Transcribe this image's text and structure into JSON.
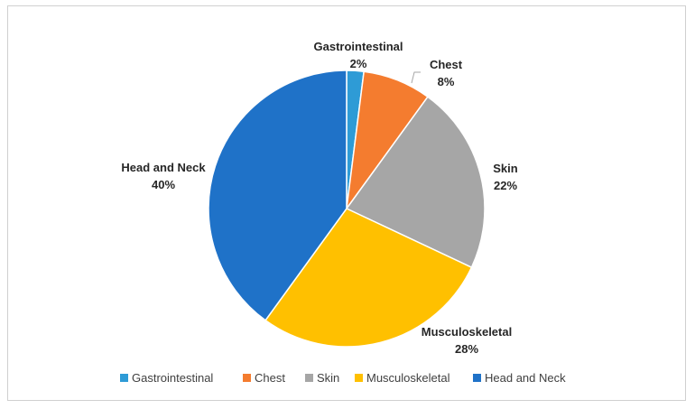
{
  "chart_data": {
    "type": "pie",
    "title": "",
    "categories": [
      "Gastrointestinal",
      "Chest",
      "Skin",
      "Musculoskeletal",
      "Head and Neck"
    ],
    "values": [
      2,
      8,
      22,
      28,
      40
    ],
    "labels": [
      "2%",
      "8%",
      "22%",
      "28%",
      "40%"
    ],
    "colors": [
      "#2E9BD6",
      "#F47C2F",
      "#A6A6A6",
      "#FFC000",
      "#1F72C8"
    ],
    "legend_position": "bottom",
    "start_angle_deg": 0,
    "direction": "clockwise"
  }
}
